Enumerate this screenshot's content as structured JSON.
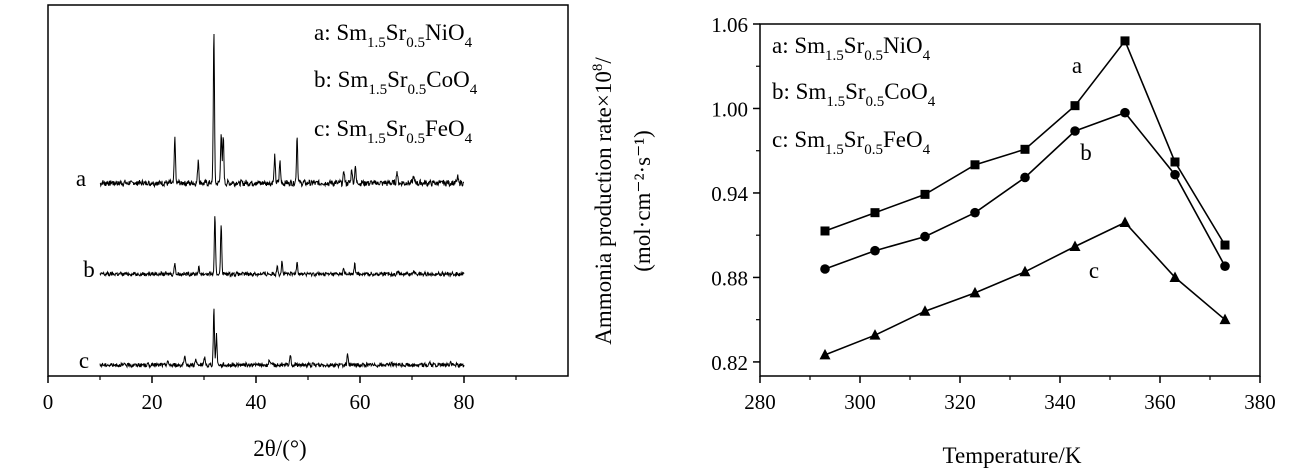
{
  "chart_data": [
    {
      "type": "line",
      "title": "",
      "xlabel": "2θ/(°)",
      "ylabel": "",
      "xlim": [
        0,
        100
      ],
      "xticks": [
        0,
        20,
        40,
        60,
        80
      ],
      "grid": false,
      "legend_position": "top-right",
      "legend": [
        {
          "key": "a",
          "formula": [
            [
              "Sm",
              "1.5"
            ],
            [
              "Sr",
              "0.5"
            ],
            [
              "NiO",
              "4"
            ]
          ]
        },
        {
          "key": "b",
          "formula": [
            [
              "Sm",
              "1.5"
            ],
            [
              "Sr",
              "0.5"
            ],
            [
              "CoO",
              "4"
            ]
          ]
        },
        {
          "key": "c",
          "formula": [
            [
              "Sm",
              "1.5"
            ],
            [
              "Sr",
              "0.5"
            ],
            [
              "FeO",
              "4"
            ]
          ]
        }
      ],
      "series": [
        {
          "label": "a",
          "x_range": [
            10,
            80
          ],
          "peaks": [
            [
              24.4,
              3.0
            ],
            [
              28.9,
              1.6
            ],
            [
              31.9,
              10.0
            ],
            [
              33.3,
              3.4
            ],
            [
              33.7,
              3.0
            ],
            [
              43.6,
              1.8
            ],
            [
              44.6,
              1.5
            ],
            [
              47.9,
              3.2
            ],
            [
              56.9,
              0.8
            ],
            [
              58.4,
              1.0
            ],
            [
              59.1,
              1.2
            ],
            [
              67.1,
              0.8
            ],
            [
              70.3,
              0.5
            ],
            [
              78.8,
              0.4
            ]
          ]
        },
        {
          "label": "b",
          "x_range": [
            10,
            80
          ],
          "peaks": [
            [
              24.4,
              1.1
            ],
            [
              29.0,
              0.7
            ],
            [
              32.1,
              5.6
            ],
            [
              33.3,
              4.8
            ],
            [
              44.1,
              0.9
            ],
            [
              45.0,
              1.2
            ],
            [
              47.9,
              1.4
            ],
            [
              56.8,
              0.5
            ],
            [
              59.0,
              1.0
            ],
            [
              67.4,
              0.3
            ],
            [
              70.4,
              0.3
            ]
          ]
        },
        {
          "label": "c",
          "x_range": [
            10,
            80
          ],
          "peaks": [
            [
              23.0,
              0.4
            ],
            [
              26.3,
              0.7
            ],
            [
              28.4,
              0.5
            ],
            [
              30.1,
              0.7
            ],
            [
              31.9,
              5.0
            ],
            [
              32.4,
              2.8
            ],
            [
              42.6,
              0.5
            ],
            [
              46.6,
              1.0
            ],
            [
              57.6,
              0.9
            ],
            [
              66.1,
              0.3
            ],
            [
              73.4,
              0.2
            ],
            [
              77.4,
              0.3
            ]
          ]
        }
      ]
    },
    {
      "type": "line",
      "title": "",
      "xlabel": "Temperature/K",
      "ylabel_line1": "Ammonia production rate×10",
      "ylabel_line1_sup": "8",
      "ylabel_line1_end": "/",
      "ylabel_line2": "(mol·cm⁻²·s⁻¹)",
      "xlim": [
        280,
        380
      ],
      "ylim": [
        0.81,
        1.06
      ],
      "xticks": [
        280,
        300,
        320,
        340,
        360,
        380
      ],
      "yticks": [
        "0.82",
        "0.88",
        "0.94",
        "1.00",
        "1.06"
      ],
      "grid": false,
      "legend_position": "top-left",
      "legend": [
        {
          "key": "a",
          "formula": [
            [
              "Sm",
              "1.5"
            ],
            [
              "Sr",
              "0.5"
            ],
            [
              "NiO",
              "4"
            ]
          ]
        },
        {
          "key": "b",
          "formula": [
            [
              "Sm",
              "1.5"
            ],
            [
              "Sr",
              "0.5"
            ],
            [
              "CoO",
              "4"
            ]
          ]
        },
        {
          "key": "c",
          "formula": [
            [
              "Sm",
              "1.5"
            ],
            [
              "Sr",
              "0.5"
            ],
            [
              "FeO",
              "4"
            ]
          ]
        }
      ],
      "x": [
        293,
        303,
        313,
        323,
        333,
        343,
        353,
        363,
        373
      ],
      "series": [
        {
          "label": "a",
          "marker": "square",
          "values": [
            0.913,
            0.926,
            0.939,
            0.96,
            0.971,
            1.002,
            1.048,
            0.962,
            0.903
          ]
        },
        {
          "label": "b",
          "marker": "circle",
          "values": [
            0.886,
            0.899,
            0.909,
            0.926,
            0.951,
            0.984,
            0.997,
            0.953,
            0.888
          ]
        },
        {
          "label": "c",
          "marker": "triangle",
          "values": [
            0.825,
            0.839,
            0.856,
            0.869,
            0.884,
            0.902,
            0.919,
            0.88,
            0.85
          ]
        }
      ]
    }
  ]
}
